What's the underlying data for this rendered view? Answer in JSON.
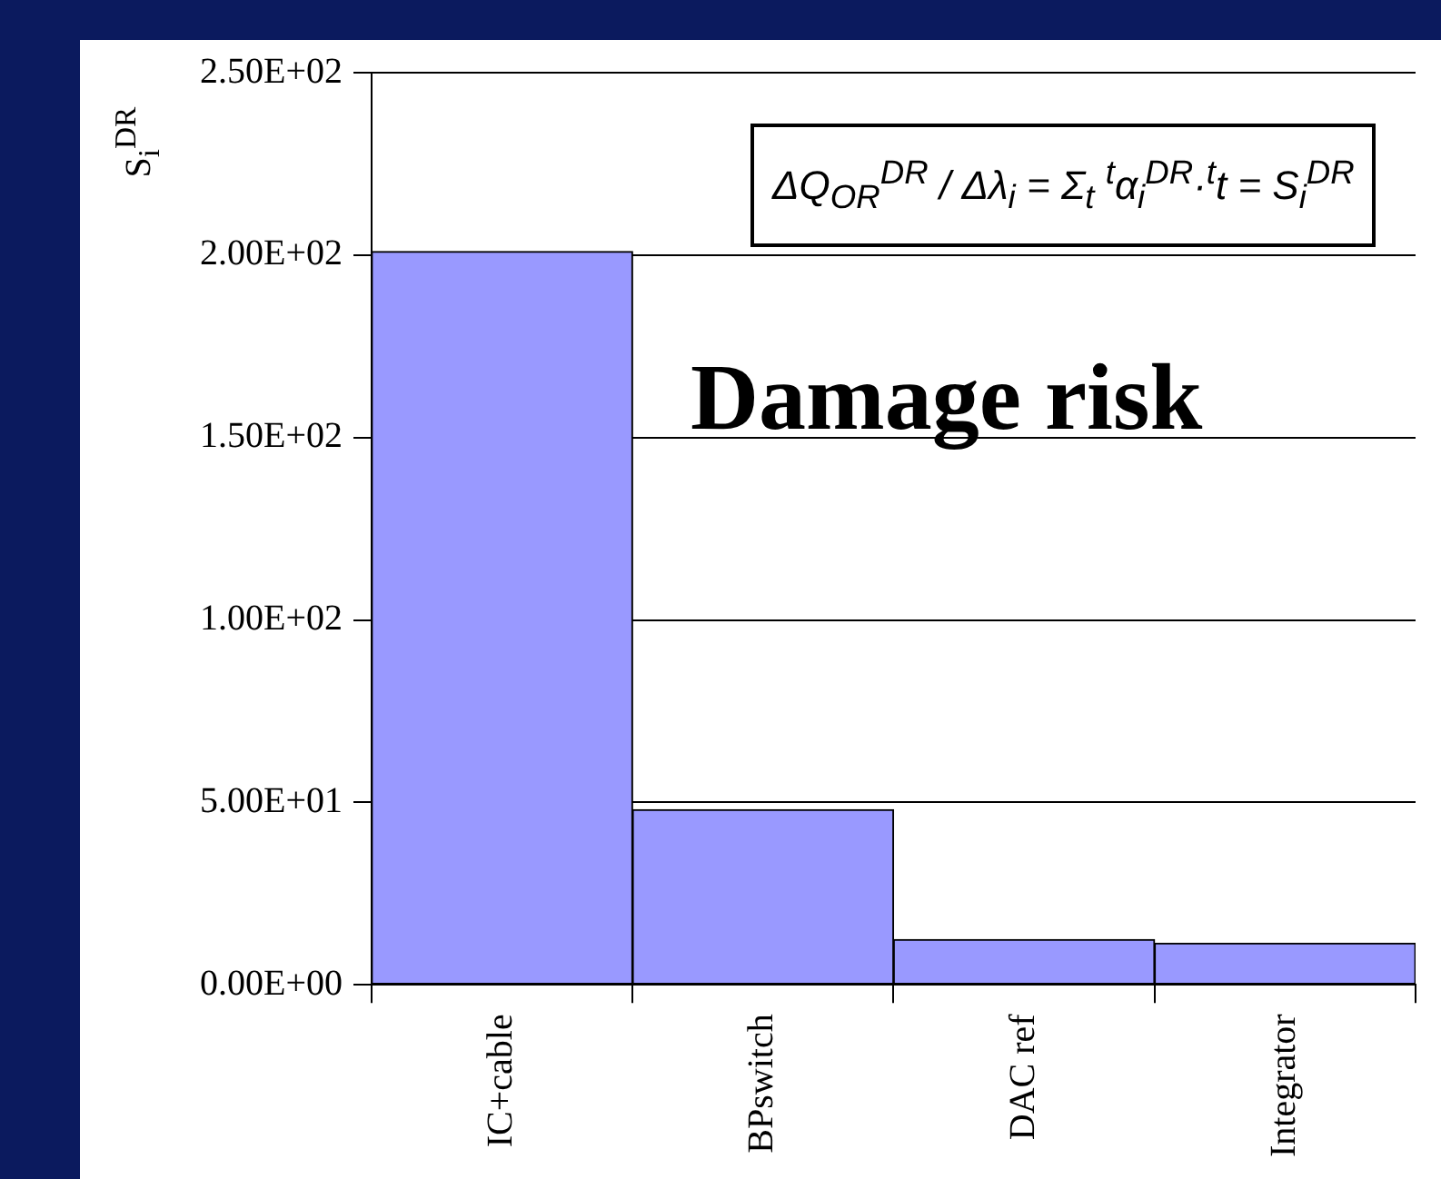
{
  "chart_data": {
    "type": "bar",
    "title": "Damage risk",
    "ylabel": "S$_{i}$$^{DR}$",
    "annotations": [
      "ΔQ$_{OR}$$^{DR}$ / Δλ$_{i}$ = Σ$_{t}$ $^{t}$α$_{i}$$^{DR}$·$^{t}$t = S$_{i}$$^{DR}$"
    ],
    "categories": [
      "IC+cable",
      "BPswitch",
      "DAC ref",
      "Integrator"
    ],
    "values": [
      201,
      48,
      12.4,
      11.4
    ],
    "color": "#9999ff",
    "ylim": [
      0,
      250
    ],
    "yticks": [
      {
        "value": 0,
        "label": "0.00E+00"
      },
      {
        "value": 50,
        "label": "5.00E+01"
      },
      {
        "value": 100,
        "label": "1.00E+02"
      },
      {
        "value": 150,
        "label": "1.50E+02"
      },
      {
        "value": 200,
        "label": "2.00E+02"
      },
      {
        "value": 250,
        "label": "2.50E+02"
      }
    ],
    "grid": "y",
    "legend": false
  }
}
